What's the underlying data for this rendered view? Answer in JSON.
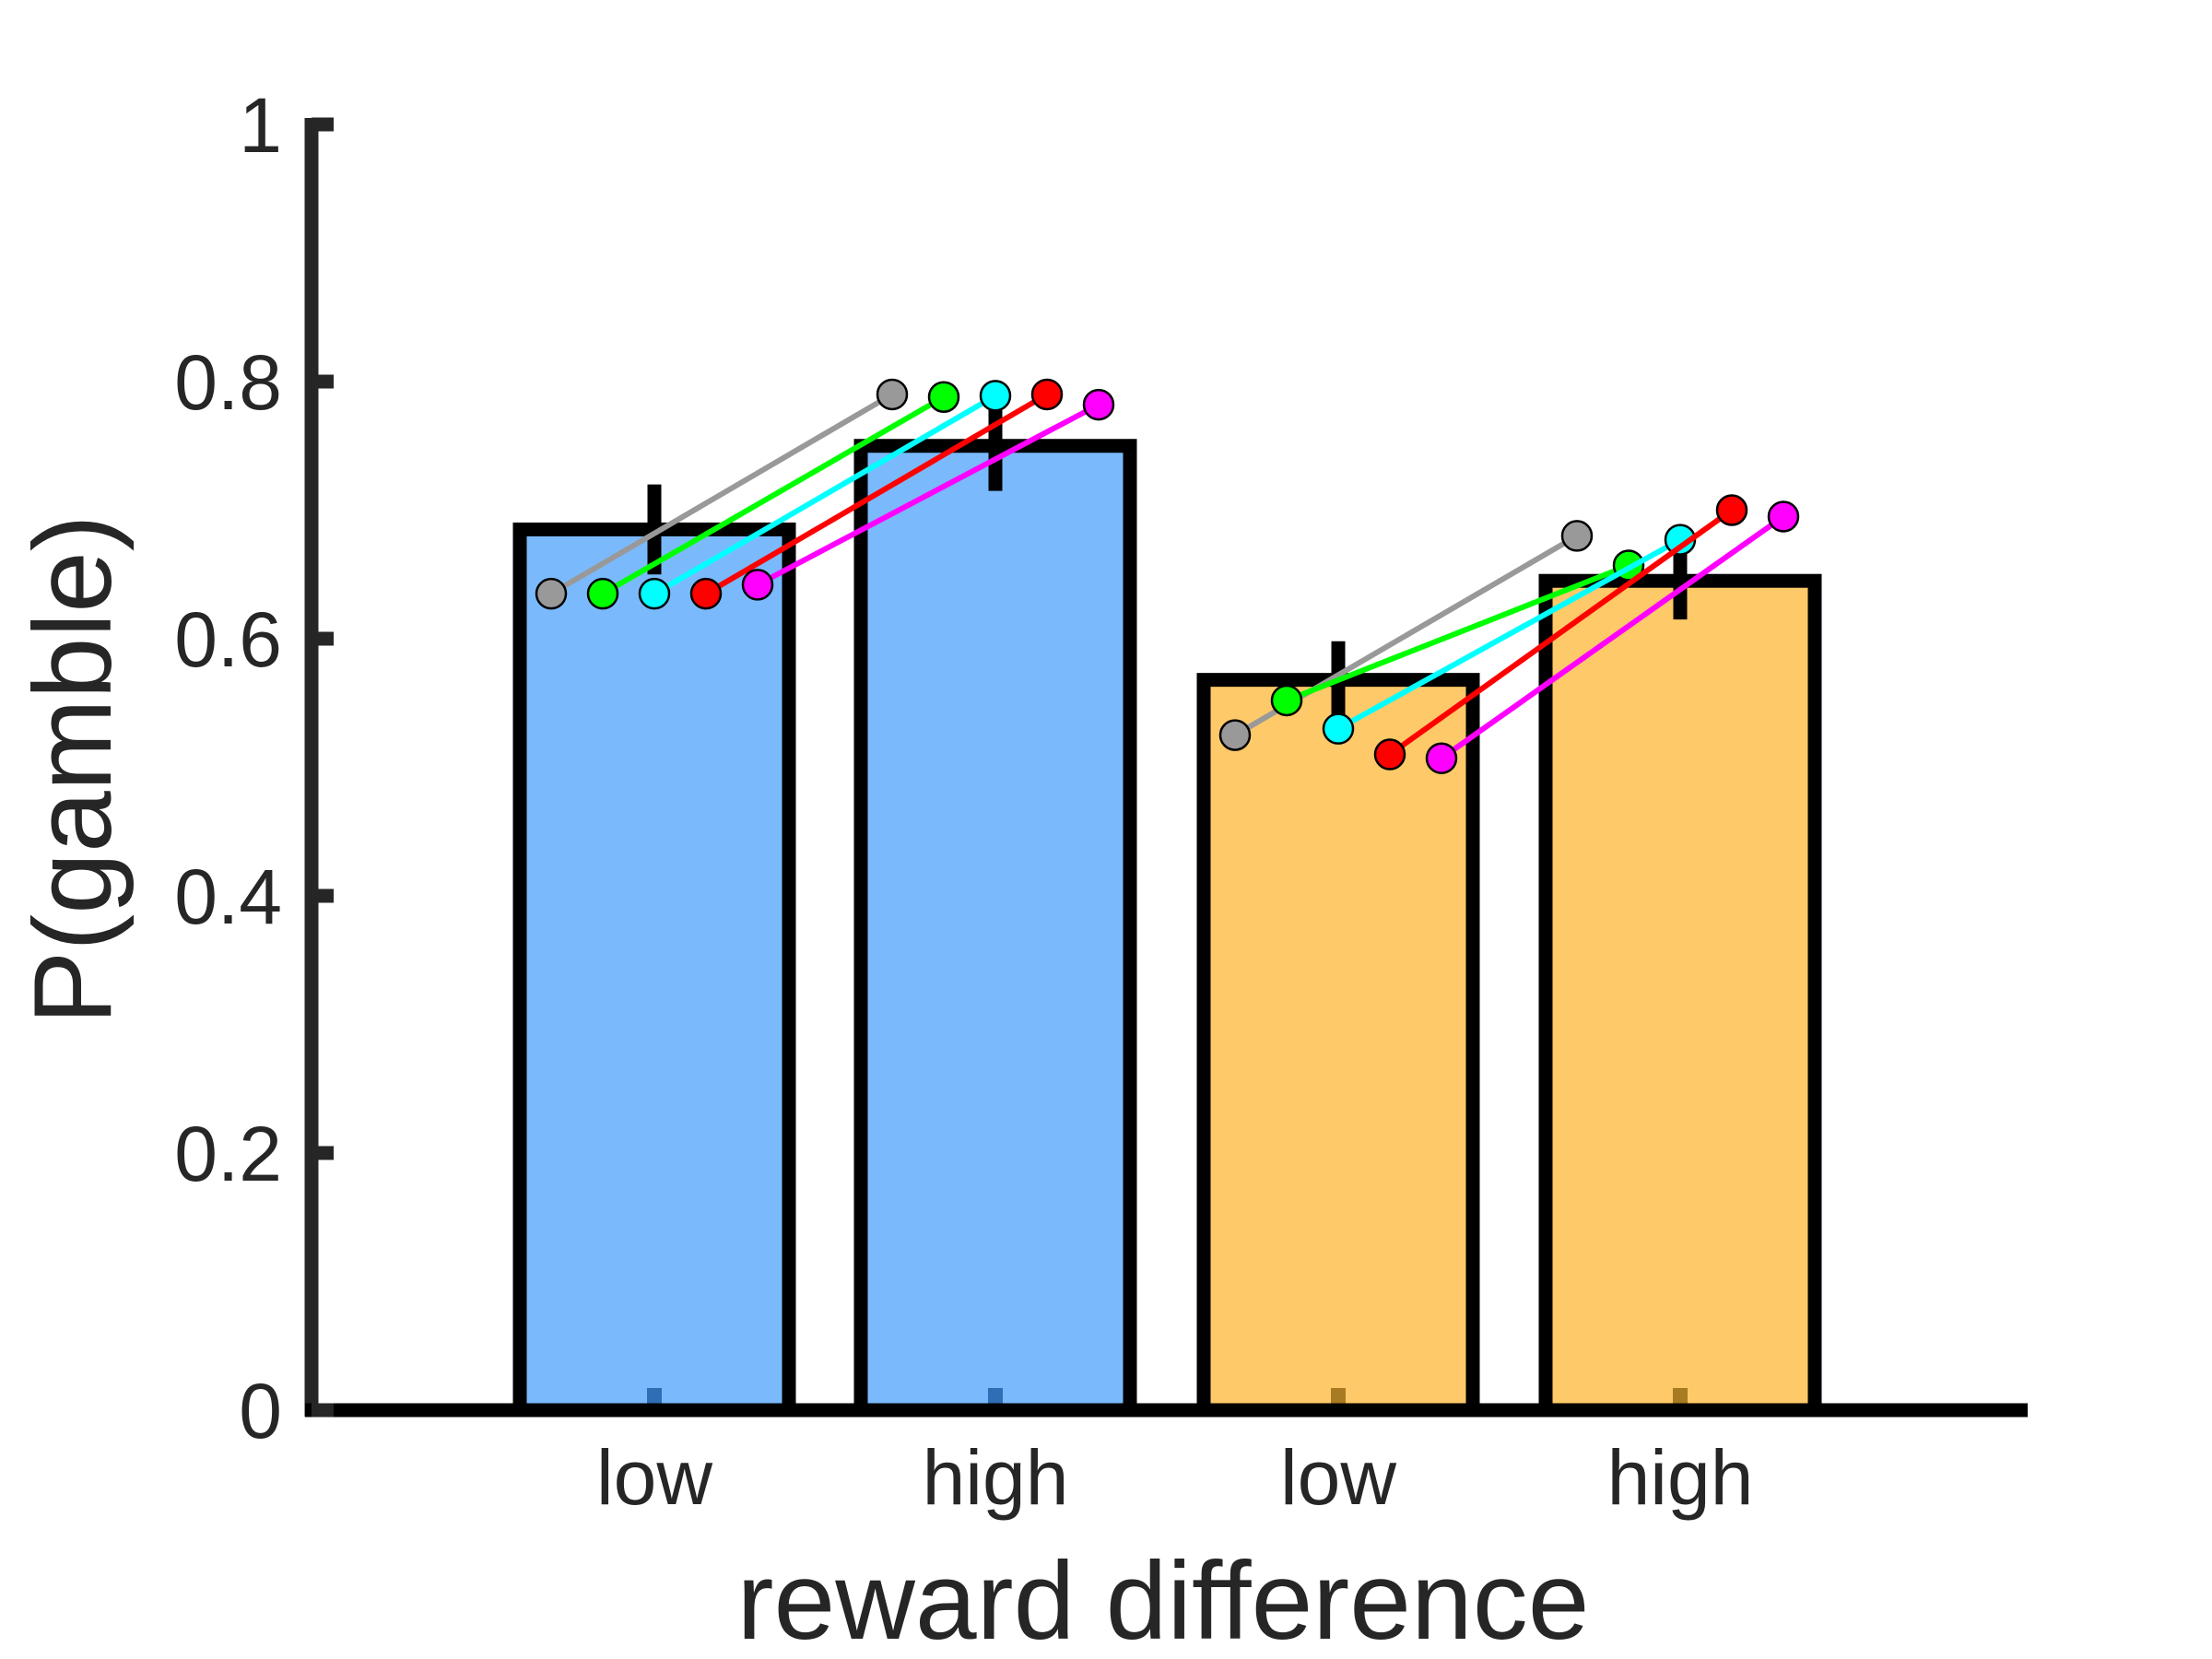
{
  "chart_data": {
    "type": "bar",
    "title": "",
    "xlabel": "reward difference",
    "ylabel": "P(gamble)",
    "ylim": [
      0,
      1
    ],
    "yticks": [
      0,
      0.2,
      0.4,
      0.6,
      0.8,
      1
    ],
    "ytick_labels": [
      "0",
      "0.2",
      "0.4",
      "0.6",
      "0.8",
      "1"
    ],
    "categories": [
      "low",
      "high",
      "low",
      "high"
    ],
    "values": [
      0.685,
      0.75,
      0.568,
      0.645
    ],
    "error": [
      0.035,
      0.035,
      0.03,
      0.03
    ],
    "bar_colors": [
      "#7ABAFC",
      "#7ABAFC",
      "#FEC969",
      "#FEC969"
    ],
    "bar_edge_color": "#000000",
    "grid": false,
    "legend": "none",
    "series": [
      {
        "color": "#999999",
        "values": [
          0.635,
          0.79,
          0.525,
          0.68
        ]
      },
      {
        "color": "#00FF00",
        "values": [
          0.635,
          0.788,
          0.552,
          0.657
        ]
      },
      {
        "color": "#00FFFF",
        "values": [
          0.635,
          0.789,
          0.53,
          0.677
        ]
      },
      {
        "color": "#FF0000",
        "values": [
          0.635,
          0.79,
          0.51,
          0.7
        ]
      },
      {
        "color": "#FF00FF",
        "values": [
          0.642,
          0.782,
          0.507,
          0.695
        ]
      }
    ]
  }
}
